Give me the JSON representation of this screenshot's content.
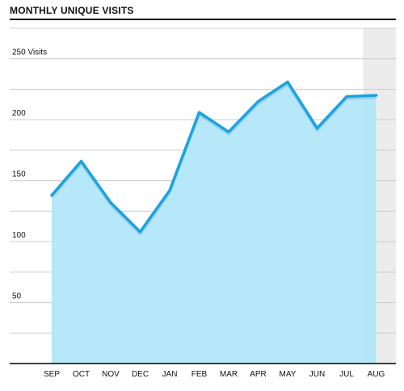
{
  "chart_data": {
    "type": "area",
    "title": "MONTHLY UNIQUE VISITS",
    "categories": [
      "SEP",
      "OCT",
      "NOV",
      "DEC",
      "JAN",
      "FEB",
      "MAR",
      "APR",
      "MAY",
      "JUN",
      "JUL",
      "AUG"
    ],
    "series": [
      {
        "values": [
          138,
          166,
          132,
          108,
          142,
          206,
          190,
          215,
          231,
          193,
          219,
          220
        ]
      }
    ],
    "yticks": [
      {
        "value": 250,
        "label": "250 Visits"
      },
      {
        "value": 200,
        "label": "200"
      },
      {
        "value": 150,
        "label": "150"
      },
      {
        "value": 100,
        "label": "100"
      },
      {
        "value": 50,
        "label": "50"
      }
    ],
    "ylim": [
      0,
      275
    ],
    "grid": true,
    "highlight_category": "AUG",
    "colors": {
      "line": "#1aa3e0",
      "fill": "#b3e7fa",
      "grid": "#cccccc",
      "highlight": "#ececec"
    }
  }
}
